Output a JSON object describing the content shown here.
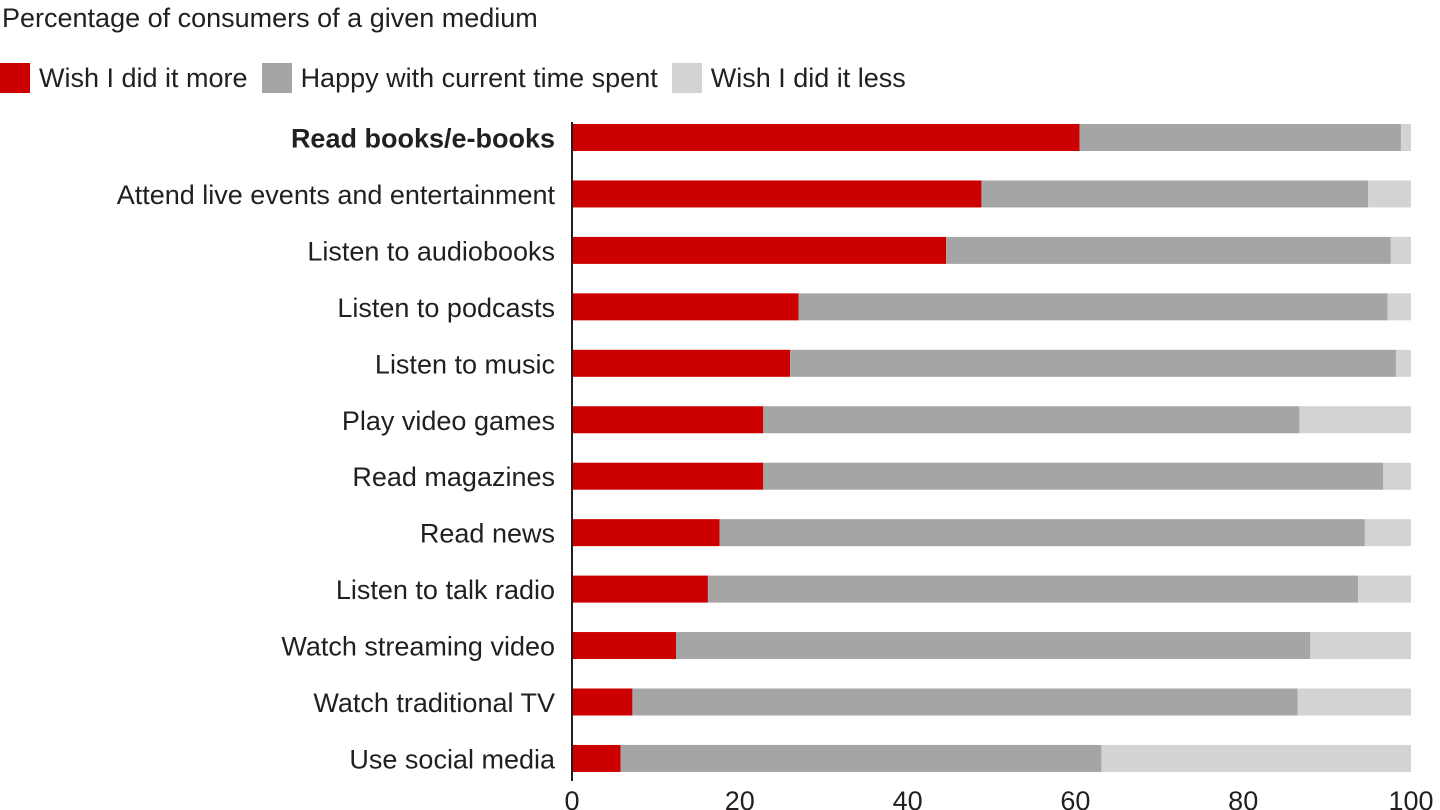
{
  "chart_data": {
    "type": "bar",
    "orientation": "horizontal",
    "stacked": true,
    "title": "",
    "subtitle": "Percentage of consumers of a given medium",
    "xlabel": "",
    "ylabel": "",
    "xlim": [
      0,
      100
    ],
    "xticks": [
      "0",
      "20",
      "40",
      "60",
      "80",
      "100"
    ],
    "legend_position": "top-left",
    "grid": false,
    "categories": [
      "Read books/e-books",
      "Attend live events and entertainment",
      "Listen to audiobooks",
      "Listen to podcasts",
      "Listen to music",
      "Play video games",
      "Read magazines",
      "Read news",
      "Listen to talk radio",
      "Watch streaming video",
      "Watch traditional TV",
      "Use social media"
    ],
    "highlighted_category": "Read books/e-books",
    "series": [
      {
        "name": "Wish I did it more",
        "color": "#cc0000",
        "values": [
          60.5,
          48.8,
          44.6,
          27.0,
          26.0,
          22.8,
          22.8,
          17.6,
          16.2,
          12.4,
          7.2,
          5.8
        ]
      },
      {
        "name": "Happy with current time spent",
        "color": "#a5a5a5",
        "values": [
          38.3,
          46.1,
          53.0,
          70.2,
          72.2,
          63.9,
          73.9,
          76.9,
          77.5,
          75.6,
          79.3,
          57.3
        ]
      },
      {
        "name": "Wish I did it less",
        "color": "#d3d3d3",
        "values": [
          1.2,
          5.1,
          2.4,
          2.8,
          1.8,
          13.3,
          3.3,
          5.5,
          6.3,
          12.0,
          13.5,
          36.9
        ]
      }
    ]
  }
}
